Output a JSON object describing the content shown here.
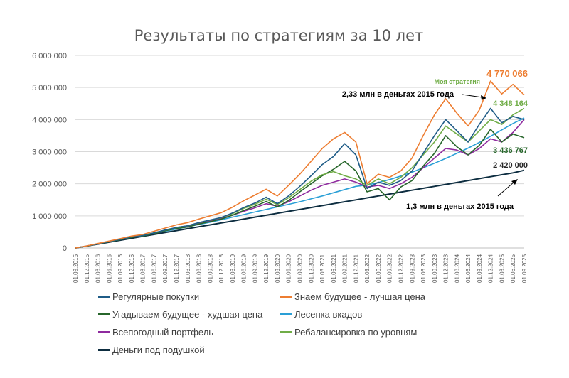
{
  "chart_data": {
    "type": "line",
    "title": "Результаты по стратегиям за 10 лет",
    "xlabel": "",
    "ylabel": "",
    "ylim": [
      0,
      6000000
    ],
    "y_ticks": [
      0,
      1000000,
      2000000,
      3000000,
      4000000,
      5000000,
      6000000
    ],
    "y_tick_labels": [
      "0",
      "1 000 000",
      "2 000 000",
      "3 000 000",
      "4 000 000",
      "5 000 000",
      "6 000 000"
    ],
    "x_tick_labels": [
      "01.09.2015",
      "01.12.2015",
      "01.03.2016",
      "01.06.2016",
      "01.09.2016",
      "01.12.2016",
      "01.03.2017",
      "01.06.2017",
      "01.09.2017",
      "01.12.2017",
      "01.03.2018",
      "01.06.2018",
      "01.09.2018",
      "01.12.2018",
      "01.03.2019",
      "01.06.2019",
      "01.09.2019",
      "01.12.2019",
      "01.03.2020",
      "01.06.2020",
      "01.09.2020",
      "01.12.2020",
      "01.03.2021",
      "01.06.2021",
      "01.09.2021",
      "01.12.2021",
      "01.03.2022",
      "01.06.2022",
      "01.09.2022",
      "01.12.2022",
      "01.03.2023",
      "01.06.2023",
      "01.09.2023",
      "01.12.2023",
      "01.03.2024",
      "01.06.2024",
      "01.09.2024",
      "01.12.2024",
      "01.03.2025",
      "01.06.2025",
      "01.09.2025"
    ],
    "grid": true,
    "legend_position": "bottom",
    "series": [
      {
        "name": "Регулярные покупки",
        "color": "#1f5c87",
        "values": [
          0,
          60000,
          130000,
          200000,
          270000,
          345000,
          385000,
          470000,
          560000,
          640000,
          690000,
          790000,
          870000,
          950000,
          1090000,
          1260000,
          1400000,
          1580000,
          1380000,
          1620000,
          1920000,
          2250000,
          2600000,
          2850000,
          3250000,
          2900000,
          1850000,
          2050000,
          1950000,
          2100000,
          2400000,
          2950000,
          3500000,
          4000000,
          3650000,
          3300000,
          3850000,
          4350000,
          3900000,
          4100000,
          4000000
        ]
      },
      {
        "name": "Знаем будущее - лучшая цена",
        "color": "#ed7d31",
        "values": [
          0,
          65000,
          140000,
          215000,
          290000,
          370000,
          420000,
          520000,
          620000,
          720000,
          790000,
          900000,
          1000000,
          1100000,
          1270000,
          1470000,
          1650000,
          1830000,
          1620000,
          1950000,
          2300000,
          2700000,
          3100000,
          3400000,
          3600000,
          3300000,
          2000000,
          2300000,
          2200000,
          2400000,
          2800000,
          3500000,
          4150000,
          4650000,
          4200000,
          3800000,
          4300000,
          5200000,
          4800000,
          5100000,
          4770066
        ]
      },
      {
        "name": "Угадываем будущее - худшая цена",
        "color": "#27662b",
        "values": [
          0,
          55000,
          125000,
          190000,
          260000,
          330000,
          370000,
          450000,
          535000,
          610000,
          650000,
          745000,
          820000,
          900000,
          1020000,
          1170000,
          1300000,
          1450000,
          1280000,
          1480000,
          1750000,
          2000000,
          2250000,
          2450000,
          2700000,
          2400000,
          1750000,
          1850000,
          1500000,
          1900000,
          2100000,
          2550000,
          2950000,
          3500000,
          3150000,
          2900000,
          3200000,
          3700000,
          3300000,
          3550000,
          3436767
        ]
      },
      {
        "name": "Лесенка вкадов",
        "color": "#2a9fd6",
        "values": [
          0,
          58000,
          125000,
          190000,
          255000,
          320000,
          385000,
          450000,
          520000,
          590000,
          660000,
          730000,
          800000,
          880000,
          960000,
          1040000,
          1120000,
          1200000,
          1280000,
          1360000,
          1440000,
          1530000,
          1620000,
          1720000,
          1820000,
          1920000,
          1960000,
          2040000,
          2130000,
          2240000,
          2360000,
          2500000,
          2640000,
          2790000,
          2950000,
          3110000,
          3290000,
          3480000,
          3680000,
          3880000,
          4050000
        ]
      },
      {
        "name": "Всепогодный портфель",
        "color": "#8e2a9e",
        "values": [
          0,
          58000,
          125000,
          195000,
          265000,
          340000,
          390000,
          460000,
          540000,
          620000,
          680000,
          760000,
          840000,
          920000,
          1020000,
          1140000,
          1250000,
          1380000,
          1300000,
          1440000,
          1620000,
          1800000,
          1950000,
          2050000,
          2150000,
          2050000,
          1900000,
          1950000,
          1850000,
          2000000,
          2200000,
          2500000,
          2800000,
          3100000,
          3050000,
          2900000,
          3100000,
          3400000,
          3300000,
          3600000,
          4000000
        ]
      },
      {
        "name": "Ребалансировка по уровням",
        "color": "#70ad47",
        "values": [
          0,
          60000,
          130000,
          200000,
          270000,
          345000,
          390000,
          470000,
          555000,
          635000,
          690000,
          785000,
          865000,
          945000,
          1070000,
          1230000,
          1360000,
          1520000,
          1350000,
          1560000,
          1820000,
          2080000,
          2280000,
          2380000,
          2250000,
          2150000,
          1950000,
          2150000,
          2000000,
          2200000,
          2500000,
          2900000,
          3300000,
          3800000,
          3550000,
          3300000,
          3650000,
          4000000,
          3850000,
          4150000,
          4348164
        ]
      },
      {
        "name": "Деньги под подушкой",
        "color": "#0d2d40",
        "values": [
          0,
          60000,
          120000,
          180000,
          240000,
          300000,
          360000,
          420000,
          480000,
          540000,
          600000,
          660000,
          720000,
          780000,
          840000,
          900000,
          960000,
          1020000,
          1080000,
          1140000,
          1200000,
          1260000,
          1320000,
          1380000,
          1440000,
          1500000,
          1560000,
          1620000,
          1680000,
          1740000,
          1800000,
          1860000,
          1920000,
          1980000,
          2040000,
          2100000,
          2160000,
          2220000,
          2280000,
          2340000,
          2420000
        ]
      }
    ],
    "annotations": [
      {
        "text": "4 770 066",
        "color": "#ed7d31"
      },
      {
        "text": "Моя стратегия",
        "color": "#70ad47"
      },
      {
        "text": "2,33 млн в деньгах 2015 года",
        "color": "#000000"
      },
      {
        "text": "4 348 164",
        "color": "#70ad47"
      },
      {
        "text": "3 436 767",
        "color": "#27662b"
      },
      {
        "text": "2 420 000",
        "color": "#262626"
      },
      {
        "text": "1,3 млн в деньгах 2015 года",
        "color": "#000000"
      }
    ]
  }
}
